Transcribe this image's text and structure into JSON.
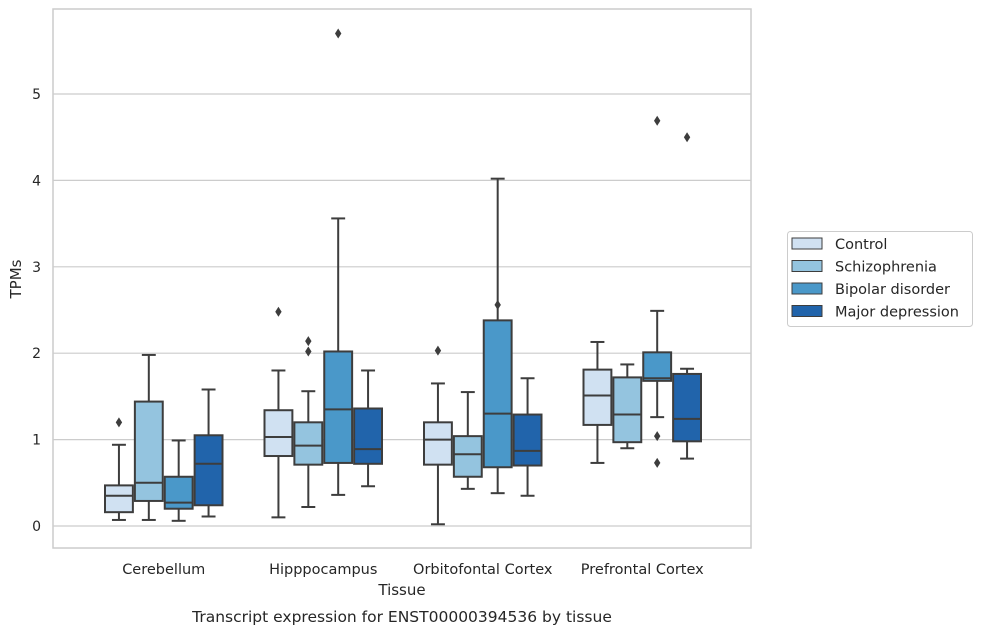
{
  "chart_data": {
    "type": "box",
    "xlabel": "Tissue",
    "ylabel": "TPMs",
    "caption": "Transcript expression for ENST00000394536 by tissue",
    "ylim": [
      -0.25,
      6.0
    ],
    "yticks": [
      0,
      1,
      2,
      3,
      4,
      5
    ],
    "grid": "horizontal",
    "legend_position": "right",
    "categories": [
      "Cerebellum",
      "Hipppocampus",
      "Orbitofontal Cortex",
      "Prefrontal Cortex"
    ],
    "series": [
      {
        "name": "Control",
        "color": "#d0e1f2",
        "boxes": [
          {
            "whislo": 0.07,
            "q1": 0.16,
            "med": 0.35,
            "q3": 0.47,
            "whishi": 0.94,
            "fliers": [
              1.2
            ]
          },
          {
            "whislo": 0.1,
            "q1": 0.81,
            "med": 1.03,
            "q3": 1.34,
            "whishi": 1.8,
            "fliers": [
              2.48
            ]
          },
          {
            "whislo": 0.02,
            "q1": 0.71,
            "med": 1.0,
            "q3": 1.2,
            "whishi": 1.65,
            "fliers": [
              2.03
            ]
          },
          {
            "whislo": 0.73,
            "q1": 1.17,
            "med": 1.51,
            "q3": 1.81,
            "whishi": 2.13,
            "fliers": []
          }
        ]
      },
      {
        "name": "Schizophrenia",
        "color": "#94c4df",
        "boxes": [
          {
            "whislo": 0.07,
            "q1": 0.29,
            "med": 0.5,
            "q3": 1.44,
            "whishi": 1.98,
            "fliers": []
          },
          {
            "whislo": 0.22,
            "q1": 0.71,
            "med": 0.93,
            "q3": 1.2,
            "whishi": 1.56,
            "fliers": [
              2.02,
              2.14
            ]
          },
          {
            "whislo": 0.43,
            "q1": 0.57,
            "med": 0.83,
            "q3": 1.04,
            "whishi": 1.55,
            "fliers": []
          },
          {
            "whislo": 0.9,
            "q1": 0.97,
            "med": 1.29,
            "q3": 1.72,
            "whishi": 1.87,
            "fliers": []
          }
        ]
      },
      {
        "name": "Bipolar disorder",
        "color": "#4a98c9",
        "boxes": [
          {
            "whislo": 0.06,
            "q1": 0.2,
            "med": 0.27,
            "q3": 0.57,
            "whishi": 0.99,
            "fliers": []
          },
          {
            "whislo": 0.36,
            "q1": 0.73,
            "med": 1.35,
            "q3": 2.02,
            "whishi": 3.56,
            "fliers": [
              5.7
            ]
          },
          {
            "whislo": 0.38,
            "q1": 0.68,
            "med": 1.3,
            "q3": 2.38,
            "whishi": 4.02,
            "fliers": [
              2.56
            ]
          },
          {
            "whislo": 1.26,
            "q1": 1.68,
            "med": 1.71,
            "q3": 2.01,
            "whishi": 2.49,
            "fliers": [
              0.73,
              1.04,
              4.69
            ]
          }
        ]
      },
      {
        "name": "Major depression",
        "color": "#2164ab",
        "boxes": [
          {
            "whislo": 0.11,
            "q1": 0.24,
            "med": 0.72,
            "q3": 1.05,
            "whishi": 1.58,
            "fliers": []
          },
          {
            "whislo": 0.46,
            "q1": 0.72,
            "med": 0.89,
            "q3": 1.36,
            "whishi": 1.8,
            "fliers": []
          },
          {
            "whislo": 0.35,
            "q1": 0.7,
            "med": 0.87,
            "q3": 1.29,
            "whishi": 1.71,
            "fliers": []
          },
          {
            "whislo": 0.78,
            "q1": 0.98,
            "med": 1.24,
            "q3": 1.76,
            "whishi": 1.82,
            "fliers": [
              4.5
            ]
          }
        ]
      }
    ]
  }
}
